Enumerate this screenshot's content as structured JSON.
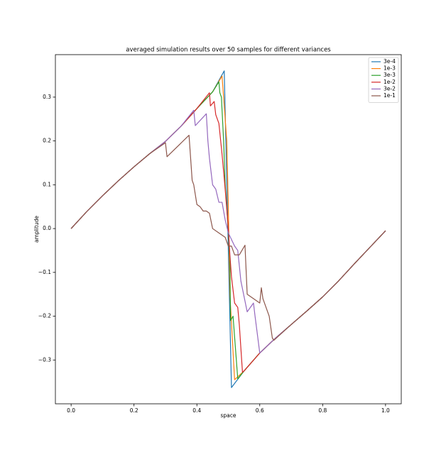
{
  "chart_data": {
    "type": "line",
    "title": "averaged simulation results over 50 samples for different variances",
    "x_label": "space",
    "y_label": "amplitude",
    "xlim": [
      -0.05,
      1.05
    ],
    "ylim": [
      -0.4,
      0.397
    ],
    "xticks": [
      {
        "value": 0,
        "label": "0.0"
      },
      0.2,
      0.4,
      0.6,
      0.8,
      {
        "value": 1,
        "label": "1.0"
      }
    ],
    "yticks": [
      {
        "value": -0.3,
        "label": "−0.3"
      },
      {
        "value": -0.2,
        "label": "−0.2"
      },
      {
        "value": -0.1,
        "label": "−0.1"
      },
      {
        "value": 0,
        "label": "0.0"
      },
      0.1,
      0.2,
      0.3
    ],
    "legend": "upper right",
    "grid": false,
    "series": [
      {
        "name": "3e-4",
        "color": "#1f77b4",
        "x": [
          0,
          0.05,
          0.1,
          0.15,
          0.2,
          0.25,
          0.3,
          0.35,
          0.4,
          0.45,
          0.487,
          0.51,
          0.55,
          0.6,
          0.65,
          0.7,
          0.75,
          0.8,
          0.85,
          0.9,
          0.95,
          1.0
        ],
        "values": [
          0,
          0.039,
          0.075,
          0.109,
          0.141,
          0.171,
          0.199,
          0.234,
          0.274,
          0.312,
          0.36,
          -0.363,
          -0.325,
          -0.284,
          -0.25,
          -0.219,
          -0.188,
          -0.156,
          -0.12,
          -0.081,
          -0.043,
          -0.005
        ]
      },
      {
        "name": "1e-3",
        "color": "#ff7f0e",
        "x": [
          0,
          0.05,
          0.1,
          0.15,
          0.2,
          0.25,
          0.3,
          0.35,
          0.4,
          0.45,
          0.48,
          0.485,
          0.495,
          0.5,
          0.505,
          0.52,
          0.55,
          0.6,
          0.65,
          0.7,
          0.75,
          0.8,
          0.85,
          0.9,
          0.95,
          1.0
        ],
        "values": [
          0,
          0.039,
          0.075,
          0.109,
          0.141,
          0.171,
          0.199,
          0.234,
          0.274,
          0.312,
          0.348,
          0.3,
          0.2,
          0.05,
          -0.15,
          -0.345,
          -0.325,
          -0.284,
          -0.25,
          -0.219,
          -0.188,
          -0.156,
          -0.12,
          -0.081,
          -0.043,
          -0.005
        ]
      },
      {
        "name": "3e-3",
        "color": "#2ca02c",
        "x": [
          0,
          0.05,
          0.1,
          0.15,
          0.2,
          0.25,
          0.3,
          0.35,
          0.4,
          0.45,
          0.47,
          0.473,
          0.478,
          0.485,
          0.49,
          0.495,
          0.505,
          0.507,
          0.515,
          0.53,
          0.55,
          0.6,
          0.65,
          0.7,
          0.75,
          0.8,
          0.85,
          0.9,
          0.95,
          1.0
        ],
        "values": [
          0,
          0.039,
          0.075,
          0.109,
          0.141,
          0.171,
          0.199,
          0.234,
          0.274,
          0.312,
          0.335,
          0.31,
          0.3,
          0.2,
          0.1,
          0.05,
          -0.07,
          -0.21,
          -0.2,
          -0.343,
          -0.325,
          -0.284,
          -0.25,
          -0.219,
          -0.188,
          -0.156,
          -0.12,
          -0.081,
          -0.043,
          -0.005
        ]
      },
      {
        "name": "1e-2",
        "color": "#d62728",
        "x": [
          0,
          0.05,
          0.1,
          0.15,
          0.2,
          0.25,
          0.3,
          0.35,
          0.4,
          0.44,
          0.443,
          0.455,
          0.46,
          0.47,
          0.48,
          0.49,
          0.5,
          0.505,
          0.51,
          0.52,
          0.53,
          0.535,
          0.545,
          0.55,
          0.6,
          0.65,
          0.7,
          0.75,
          0.8,
          0.85,
          0.9,
          0.95,
          1.0
        ],
        "values": [
          0,
          0.039,
          0.075,
          0.109,
          0.141,
          0.171,
          0.199,
          0.234,
          0.274,
          0.31,
          0.28,
          0.29,
          0.26,
          0.24,
          0.17,
          0.09,
          0,
          -0.06,
          -0.11,
          -0.17,
          -0.18,
          -0.22,
          -0.328,
          -0.325,
          -0.284,
          -0.25,
          -0.219,
          -0.188,
          -0.156,
          -0.12,
          -0.081,
          -0.043,
          -0.005
        ]
      },
      {
        "name": "3e-2",
        "color": "#9467bd",
        "x": [
          0,
          0.05,
          0.1,
          0.15,
          0.2,
          0.25,
          0.3,
          0.35,
          0.39,
          0.395,
          0.43,
          0.435,
          0.44,
          0.45,
          0.46,
          0.47,
          0.48,
          0.49,
          0.5,
          0.52,
          0.53,
          0.54,
          0.56,
          0.58,
          0.585,
          0.6,
          0.65,
          0.7,
          0.75,
          0.8,
          0.85,
          0.9,
          0.95,
          1.0
        ],
        "values": [
          0,
          0.039,
          0.075,
          0.109,
          0.141,
          0.171,
          0.199,
          0.234,
          0.27,
          0.235,
          0.262,
          0.2,
          0.16,
          0.1,
          0.09,
          0.06,
          0.06,
          0.02,
          -0.01,
          -0.04,
          -0.05,
          -0.12,
          -0.19,
          -0.17,
          -0.2,
          -0.284,
          -0.25,
          -0.219,
          -0.188,
          -0.156,
          -0.12,
          -0.081,
          -0.043,
          -0.005
        ]
      },
      {
        "name": "1e-1",
        "color": "#8c564b",
        "x": [
          0,
          0.05,
          0.1,
          0.15,
          0.2,
          0.25,
          0.3,
          0.305,
          0.375,
          0.385,
          0.39,
          0.4,
          0.41,
          0.42,
          0.43,
          0.44,
          0.45,
          0.47,
          0.49,
          0.5,
          0.51,
          0.52,
          0.535,
          0.553,
          0.56,
          0.6,
          0.605,
          0.61,
          0.63,
          0.64,
          0.645,
          0.7,
          0.75,
          0.8,
          0.85,
          0.9,
          0.95,
          1.0
        ],
        "values": [
          0,
          0.039,
          0.075,
          0.109,
          0.141,
          0.171,
          0.196,
          0.164,
          0.213,
          0.11,
          0.1,
          0.055,
          0.05,
          0.04,
          0.04,
          0.035,
          0,
          -0.01,
          -0.02,
          -0.04,
          -0.04,
          -0.06,
          -0.06,
          -0.038,
          -0.15,
          -0.17,
          -0.135,
          -0.16,
          -0.2,
          -0.25,
          -0.255,
          -0.219,
          -0.188,
          -0.156,
          -0.12,
          -0.081,
          -0.043,
          -0.005
        ]
      }
    ]
  }
}
